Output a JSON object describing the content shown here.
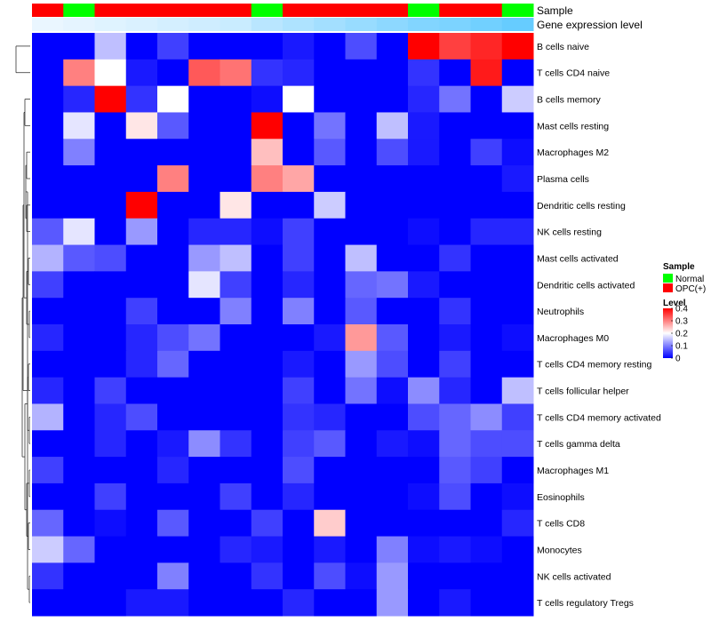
{
  "chart_data": {
    "type": "heatmap",
    "annotation_labels": {
      "sample": "Sample",
      "expression": "Gene expression level"
    },
    "sample_colors": {
      "Normal": "#00ff00",
      "OPC(+)": "#ff0000"
    },
    "columns": [
      {
        "sample": "OPC(+)",
        "expression": 0.02
      },
      {
        "sample": "Normal",
        "expression": 0.04
      },
      {
        "sample": "OPC(+)",
        "expression": 0.06
      },
      {
        "sample": "OPC(+)",
        "expression": 0.08
      },
      {
        "sample": "OPC(+)",
        "expression": 0.1
      },
      {
        "sample": "OPC(+)",
        "expression": 0.12
      },
      {
        "sample": "OPC(+)",
        "expression": 0.14
      },
      {
        "sample": "Normal",
        "expression": 0.2
      },
      {
        "sample": "OPC(+)",
        "expression": 0.24
      },
      {
        "sample": "OPC(+)",
        "expression": 0.28
      },
      {
        "sample": "OPC(+)",
        "expression": 0.32
      },
      {
        "sample": "OPC(+)",
        "expression": 0.36
      },
      {
        "sample": "Normal",
        "expression": 0.4
      },
      {
        "sample": "OPC(+)",
        "expression": 0.42
      },
      {
        "sample": "OPC(+)",
        "expression": 0.46
      },
      {
        "sample": "Normal",
        "expression": 0.5
      }
    ],
    "rows": [
      {
        "label": "B cells naive",
        "values": [
          0,
          0,
          0.15,
          0,
          0.05,
          0,
          0,
          0,
          0.02,
          0,
          0.06,
          0,
          0.4,
          0.35,
          0.37,
          0.4
        ]
      },
      {
        "label": "T cells CD4 naive",
        "values": [
          0,
          0.3,
          0.2,
          0.02,
          0,
          0.33,
          0.31,
          0.04,
          0.03,
          0,
          0,
          0,
          0.04,
          0,
          0.38,
          0
        ]
      },
      {
        "label": "B cells memory",
        "values": [
          0,
          0.03,
          0.4,
          0.04,
          0.2,
          0,
          0,
          0.01,
          0.2,
          0,
          0,
          0,
          0.03,
          0.09,
          0,
          0.16
        ]
      },
      {
        "label": "Mast cells resting",
        "values": [
          0,
          0.18,
          0,
          0.22,
          0.07,
          0,
          0,
          0.4,
          0,
          0.09,
          0,
          0.15,
          0.02,
          0,
          0,
          0
        ]
      },
      {
        "label": "Macrophages M2",
        "values": [
          0,
          0.1,
          0,
          0,
          0,
          0,
          0,
          0.25,
          0,
          0.07,
          0,
          0.06,
          0.02,
          0,
          0.05,
          0.01
        ]
      },
      {
        "label": "Plasma cells",
        "values": [
          0,
          0,
          0,
          0,
          0.3,
          0,
          0,
          0.3,
          0.27,
          0,
          0,
          0,
          0,
          0,
          0,
          0.02
        ]
      },
      {
        "label": "Dendritic cells resting",
        "values": [
          0,
          0,
          0,
          0.4,
          0,
          0,
          0.22,
          0,
          0,
          0.16,
          0,
          0,
          0,
          0,
          0,
          0
        ]
      },
      {
        "label": "NK cells resting",
        "values": [
          0.07,
          0.18,
          0,
          0.12,
          0,
          0.03,
          0.03,
          0.01,
          0.05,
          0,
          0,
          0,
          0.01,
          0,
          0.03,
          0.03
        ]
      },
      {
        "label": "Mast cells activated",
        "values": [
          0.14,
          0.07,
          0.06,
          0,
          0,
          0.12,
          0.15,
          0,
          0.05,
          0,
          0.15,
          0,
          0,
          0.04,
          0,
          0
        ]
      },
      {
        "label": "Dendritic cells activated",
        "values": [
          0.05,
          0,
          0,
          0,
          0,
          0.18,
          0.05,
          0,
          0.03,
          0,
          0.08,
          0.09,
          0.02,
          0,
          0,
          0
        ]
      },
      {
        "label": "Neutrophils",
        "values": [
          0,
          0,
          0,
          0.05,
          0,
          0,
          0.1,
          0,
          0.1,
          0,
          0.07,
          0,
          0,
          0.04,
          0,
          0
        ]
      },
      {
        "label": "Macrophages M0",
        "values": [
          0.03,
          0,
          0,
          0.03,
          0.06,
          0.09,
          0,
          0,
          0,
          0.02,
          0.28,
          0.07,
          0,
          0.02,
          0,
          0.01
        ]
      },
      {
        "label": "T cells CD4 memory resting",
        "values": [
          0,
          0,
          0,
          0.03,
          0.08,
          0,
          0,
          0,
          0.02,
          0,
          0.12,
          0.06,
          0,
          0.05,
          0,
          0
        ]
      },
      {
        "label": "T cells follicular helper",
        "values": [
          0.03,
          0,
          0.05,
          0,
          0,
          0,
          0,
          0,
          0.05,
          0,
          0.09,
          0.01,
          0.11,
          0.03,
          0,
          0.15
        ]
      },
      {
        "label": "T cells CD4 memory activated",
        "values": [
          0.14,
          0,
          0.03,
          0.06,
          0,
          0,
          0,
          0,
          0.04,
          0.03,
          0,
          0,
          0.06,
          0.08,
          0.11,
          0.05
        ]
      },
      {
        "label": "T cells gamma delta",
        "values": [
          0,
          0,
          0.03,
          0,
          0.02,
          0.11,
          0.04,
          0,
          0.05,
          0.07,
          0,
          0.02,
          0.01,
          0.08,
          0.06,
          0.06
        ]
      },
      {
        "label": "Macrophages M1",
        "values": [
          0.05,
          0,
          0,
          0,
          0.03,
          0,
          0,
          0,
          0.06,
          0,
          0,
          0,
          0,
          0.07,
          0.05,
          0
        ]
      },
      {
        "label": "Eosinophils",
        "values": [
          0,
          0,
          0.05,
          0,
          0,
          0,
          0.05,
          0,
          0.03,
          0,
          0,
          0,
          0.01,
          0.06,
          0,
          0.01
        ]
      },
      {
        "label": "T cells CD8",
        "values": [
          0.08,
          0,
          0.01,
          0,
          0.07,
          0,
          0,
          0.05,
          0,
          0.24,
          0,
          0,
          0,
          0,
          0,
          0.03
        ]
      },
      {
        "label": "Monocytes",
        "values": [
          0.16,
          0.08,
          0,
          0,
          0,
          0,
          0.03,
          0.02,
          0,
          0.02,
          0,
          0.1,
          0.01,
          0.02,
          0.01,
          0
        ]
      },
      {
        "label": "NK cells activated",
        "values": [
          0.04,
          0,
          0,
          0,
          0.1,
          0,
          0,
          0.04,
          0,
          0.06,
          0.01,
          0.12,
          0,
          0,
          0,
          0
        ]
      },
      {
        "label": "T cells regulatory  Tregs",
        "values": [
          0,
          0,
          0,
          0.02,
          0.02,
          0,
          0,
          0,
          0.03,
          0,
          0,
          0.12,
          0,
          0.02,
          0,
          0
        ]
      }
    ],
    "legend": {
      "sample_title": "Sample",
      "sample_entries": [
        "Normal",
        "OPC(+)"
      ],
      "level_title": "Level",
      "level_ticks": [
        "0.4",
        "0.3",
        "0.2",
        "0.1",
        "0"
      ],
      "level_range": [
        0,
        0.4
      ]
    },
    "colorscale": {
      "low": "#0000ff",
      "mid": "#ffffff",
      "high": "#ff0000"
    }
  }
}
